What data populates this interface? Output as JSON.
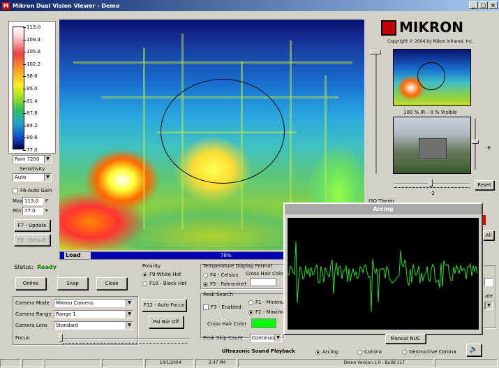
{
  "window": {
    "title": "Mikron Dual Vision Viewer - Demo",
    "min": "_",
    "max": "□",
    "close": "×"
  },
  "scale": {
    "ticks": [
      "113.0",
      "109.4",
      "105.8",
      "102.2",
      "98.6",
      "95.0",
      "91.4",
      "87.8",
      "84.2",
      "80.6",
      "77.0"
    ]
  },
  "left": {
    "palette": "Rain 7200",
    "sensitivity_label": "Sensitivity",
    "sensitivity": "Auto",
    "autogain_label": "F6-Auto Gain",
    "max_label": "Max",
    "max_value": "113.0",
    "max_unit": "F",
    "min_label": "Min",
    "min_value": "77.0",
    "min_unit": "F",
    "update_btn": "F7 - Update",
    "default_btn": "F8 - Default"
  },
  "load": {
    "label": "Load",
    "percent_text": "78%",
    "percent": 78
  },
  "status": {
    "label": "Status:",
    "value": "Ready",
    "color": "#008000"
  },
  "buttons": {
    "online": "Online",
    "snap": "Snap",
    "close": "Close",
    "autofocus": "F12 - Auto Focus",
    "palbar": "Pal Bar Off",
    "manual_nuc": "Manual NUC",
    "reset": "Reset",
    "all": "All"
  },
  "polarity": {
    "title": "Polarity",
    "options": [
      "F9-White Hot",
      "F10 - Black Hot"
    ],
    "selected": 0
  },
  "temp_format": {
    "title": "Temperature Display Format",
    "options": [
      "F4 - Celsius",
      "F5 - Fahrenheit"
    ],
    "selected": 1,
    "crosshair_label": "Cross Hair Color"
  },
  "peak": {
    "title": "Peak Search",
    "enable": "F3 - Enabled",
    "opt1": "F1 - Minimu",
    "opt2": "F2 - Maximu",
    "crosshair_label": "Cross Hair Color",
    "crosshair_color": "#00ff00",
    "skip_label": "Peak Skip Count",
    "skip_value": "Continuous"
  },
  "camera": {
    "mode_label": "Camera Mode",
    "mode": "Mikron Camera",
    "range_label": "Camera Range",
    "range": "Range 1",
    "lens_label": "Camera Lens",
    "lens": "Standard",
    "focus_label": "Focus"
  },
  "brand": {
    "logo": "MIKRON",
    "copyright": "Copyright © 2004 by Mikon Infrared, Inc."
  },
  "blend": {
    "text": "100 % IR  -  0 % Visible",
    "scale_value": "-2",
    "side_value": "-6"
  },
  "iso": {
    "label": "ISO Therm",
    "rate_label": "ate"
  },
  "arcing": {
    "title": "Arcing"
  },
  "ultrasonic": {
    "title": "Ultrasonic Sound Playback",
    "options": [
      "Arcing",
      "Corona",
      "Destructive Corona"
    ],
    "selected": 0
  },
  "statusbar": {
    "date": "10/1/2004",
    "time": "2:47 PM",
    "version": "Demo Version 1.0 - Build 117"
  },
  "colors": {
    "accent": "#0a246a",
    "brand_red": "#c00000"
  }
}
